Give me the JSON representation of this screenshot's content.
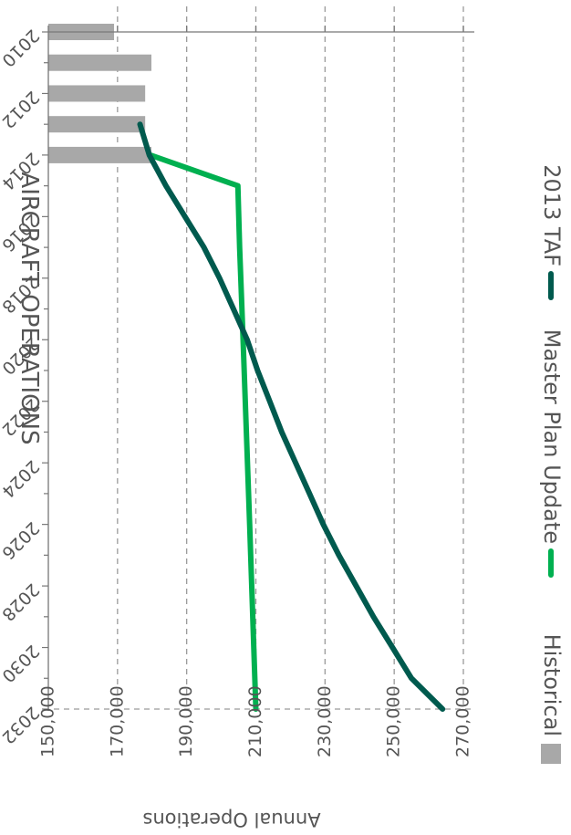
{
  "chart_data": {
    "type": "line",
    "title": "AIRCRAFT OPERATIONS",
    "ylabel": "Annual Operations",
    "xlabel": "",
    "ylim": [
      150000,
      270000
    ],
    "xlim": [
      2010,
      2032
    ],
    "y_ticks": [
      "150,000",
      "170,000",
      "190,000",
      "210,000",
      "230,000",
      "250,000",
      "270,000"
    ],
    "x_ticks": [
      "2010",
      "2012",
      "2014",
      "2016",
      "2018",
      "2020",
      "2022",
      "2024",
      "2026",
      "2028",
      "2030",
      "2032"
    ],
    "grid": true,
    "legend_position": "right",
    "series": [
      {
        "name": "Historical",
        "kind": "bar",
        "color": "#a8a8a8",
        "x": [
          2010,
          2011,
          2012,
          2013,
          2014
        ],
        "y": [
          169000,
          179800,
          178000,
          178000,
          179800
        ]
      },
      {
        "name": "Master Plan Update",
        "kind": "line",
        "color": "#00b050",
        "x": [
          2014,
          2015,
          2017,
          2020,
          2025,
          2026,
          2032
        ],
        "y": [
          179500,
          204800,
          205300,
          206300,
          207900,
          208200,
          210000
        ]
      },
      {
        "name": "2013 TAF",
        "kind": "line",
        "color": "#005a4e",
        "x": [
          2013,
          2014,
          2015,
          2017,
          2018,
          2019,
          2020,
          2021,
          2022,
          2023,
          2024,
          2025,
          2026,
          2027,
          2028,
          2029,
          2030,
          2031,
          2032
        ],
        "y": [
          176500,
          179200,
          184000,
          195000,
          199500,
          203500,
          207500,
          210500,
          214000,
          217500,
          221500,
          225500,
          229500,
          234000,
          239000,
          244000,
          249500,
          255000,
          264000
        ]
      }
    ]
  }
}
